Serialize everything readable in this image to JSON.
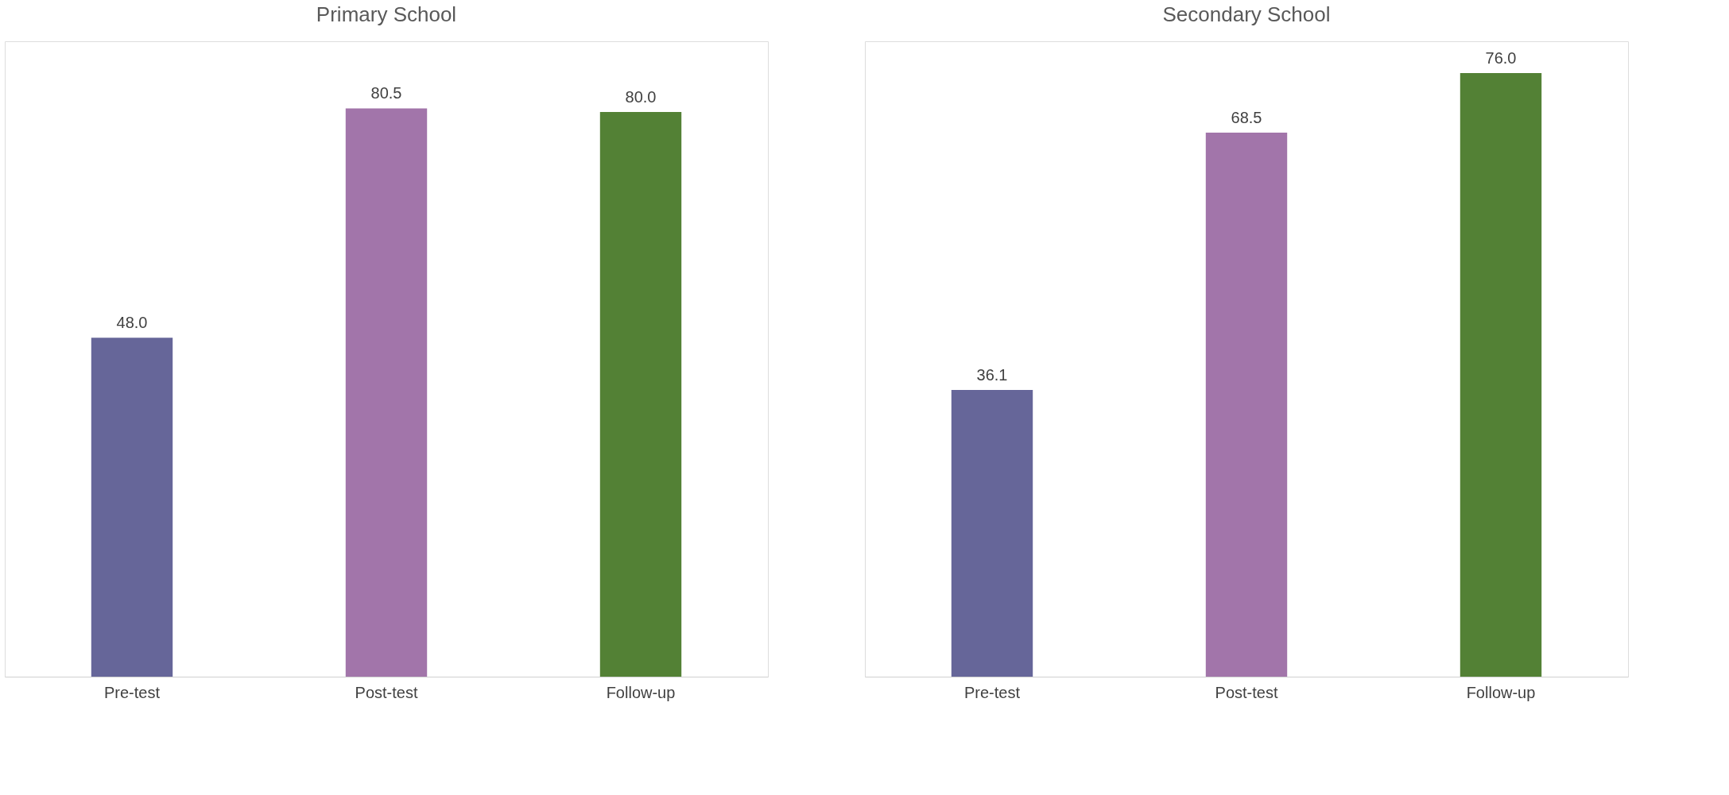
{
  "chart_data": [
    {
      "type": "bar",
      "title": "Primary School",
      "categories": [
        "Pre-test",
        "Post-test",
        "Follow-up"
      ],
      "values": [
        48.0,
        80.5,
        80.0
      ],
      "colors": [
        "#666699",
        "#a275aa",
        "#538135"
      ],
      "value_labels": [
        "48.0",
        "80.5",
        "80.0"
      ],
      "grid": false
    },
    {
      "type": "bar",
      "title": "Secondary School",
      "categories": [
        "Pre-test",
        "Post-test",
        "Follow-up"
      ],
      "values": [
        36.1,
        68.5,
        76.0
      ],
      "colors": [
        "#666699",
        "#a275aa",
        "#538135"
      ],
      "value_labels": [
        "36.1",
        "68.5",
        "76.0"
      ],
      "grid": false
    }
  ]
}
